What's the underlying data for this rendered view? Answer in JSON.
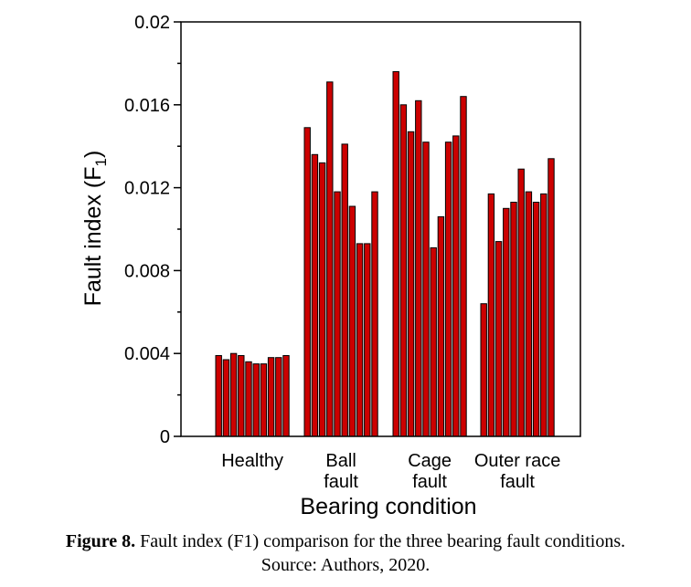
{
  "chart_data": {
    "type": "bar",
    "ylabel_main": "Fault index (F",
    "ylabel_sub": "1",
    "ylabel_close": ")",
    "xlabel": "Bearing condition",
    "ylim": [
      0,
      0.02
    ],
    "yticks": [
      "0",
      "0.004",
      "0.008",
      "0.012",
      "0.016",
      "0.02"
    ],
    "ytick_values": [
      0,
      0.004,
      0.008,
      0.012,
      0.016,
      0.02
    ],
    "bar_color": "#cc0000",
    "groups": [
      {
        "label_lines": [
          "Healthy"
        ],
        "values": [
          0.0039,
          0.0037,
          0.004,
          0.0039,
          0.0036,
          0.0035,
          0.0035,
          0.0038,
          0.0038,
          0.0039
        ]
      },
      {
        "label_lines": [
          "Ball",
          "fault"
        ],
        "values": [
          0.0149,
          0.0136,
          0.0132,
          0.0171,
          0.0118,
          0.0141,
          0.0111,
          0.0093,
          0.0093,
          0.0118
        ]
      },
      {
        "label_lines": [
          "Cage",
          "fault"
        ],
        "values": [
          0.0176,
          0.016,
          0.0147,
          0.0162,
          0.0142,
          0.0091,
          0.0106,
          0.0142,
          0.0145,
          0.0164
        ]
      },
      {
        "label_lines": [
          "Outer race",
          "fault"
        ],
        "values": [
          0.0064,
          0.0117,
          0.0094,
          0.011,
          0.0113,
          0.0129,
          0.0118,
          0.0113,
          0.0117,
          0.0134
        ]
      }
    ]
  },
  "caption": {
    "label": "Figure 8.",
    "text": " Fault index (F1) comparison for the three bearing fault conditions.",
    "source": "Source: Authors, 2020."
  }
}
